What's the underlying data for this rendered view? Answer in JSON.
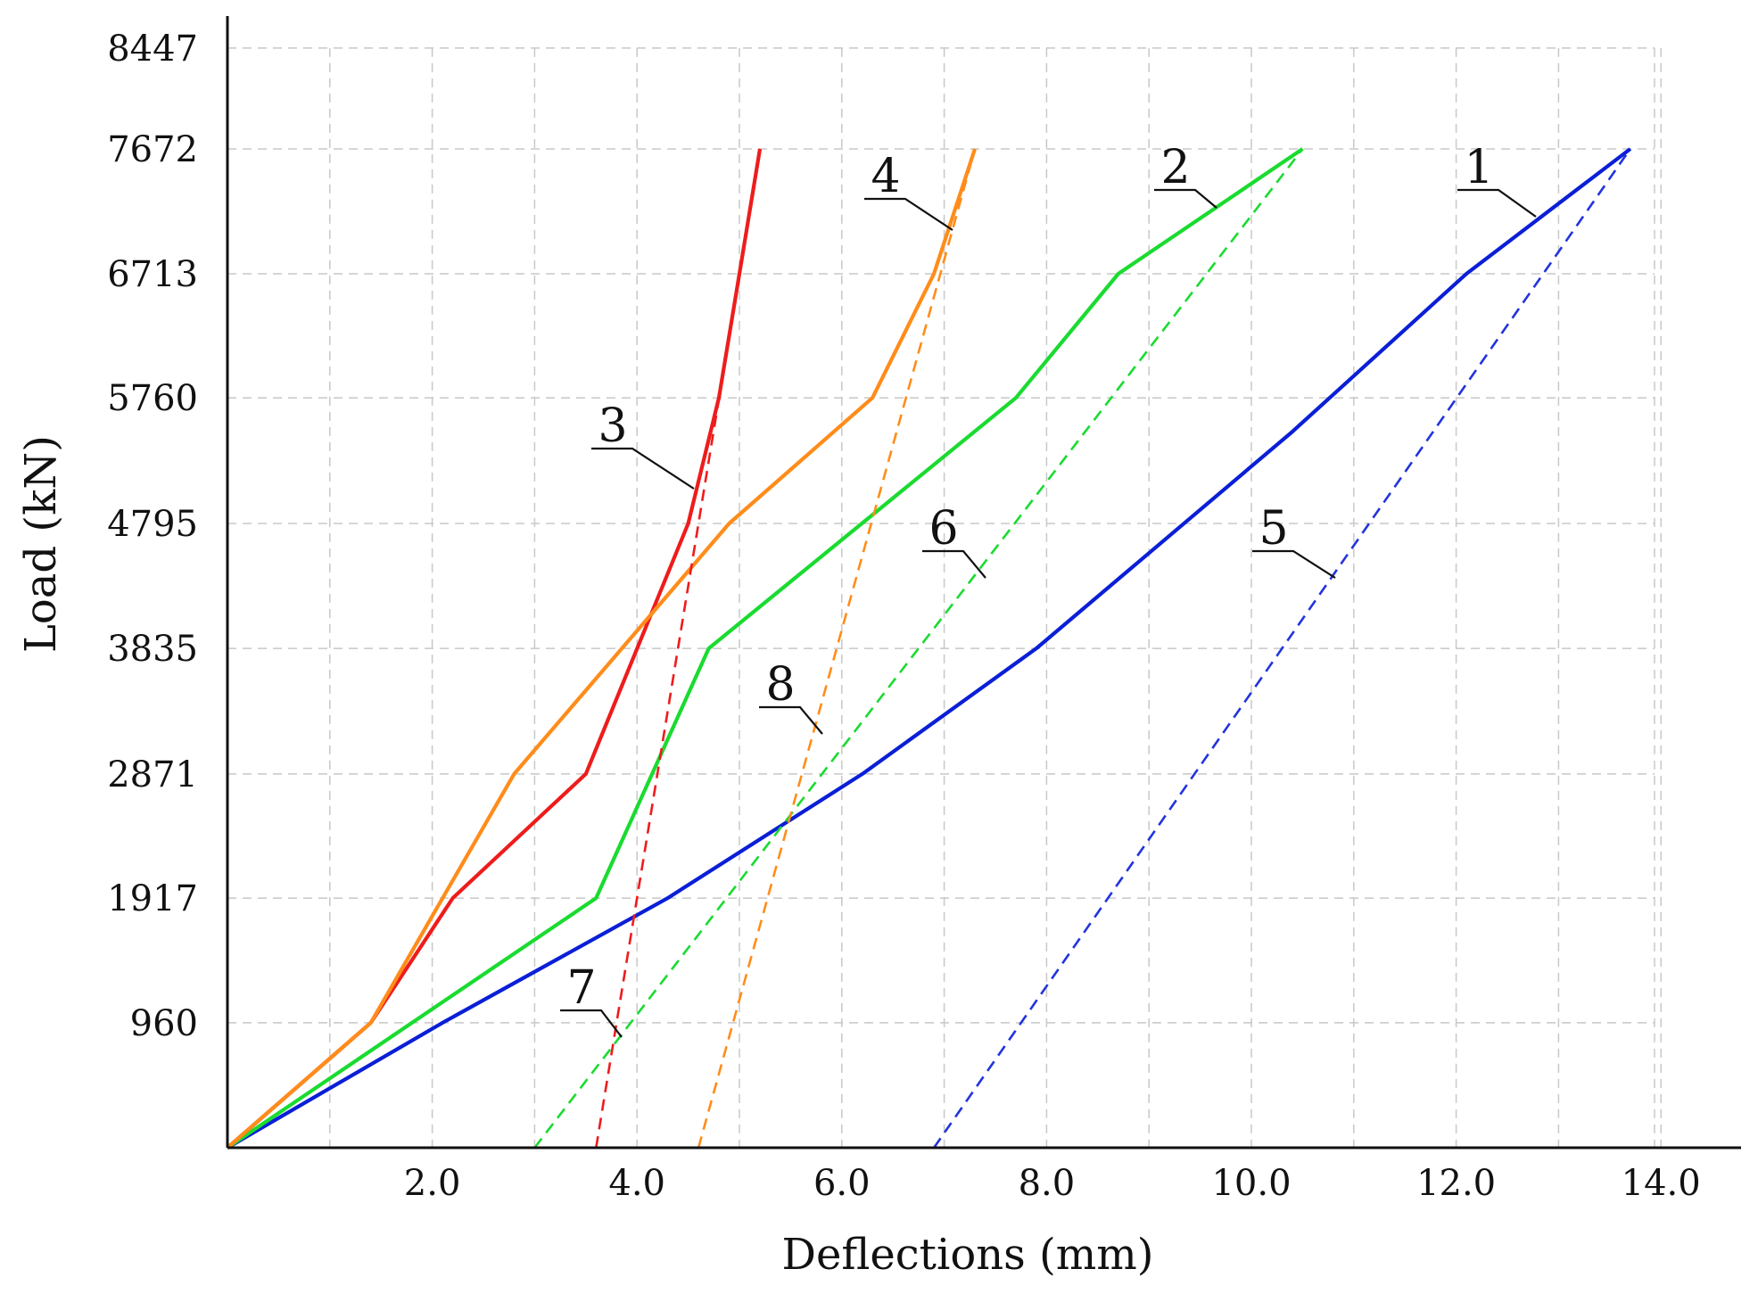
{
  "chart_data": {
    "type": "line",
    "title": "",
    "xlabel": "Deflections (mm)",
    "ylabel": "Load (kN)",
    "xlim": [
      0,
      14.5
    ],
    "ylim": [
      0,
      8447
    ],
    "grid": true,
    "x_ticks": [
      2.0,
      4.0,
      6.0,
      8.0,
      10.0,
      12.0,
      14.0
    ],
    "x_tick_labels": [
      "2.0",
      "4.0",
      "6.0",
      "8.0",
      "10.0",
      "12.0",
      "14.0"
    ],
    "x_minor_grid": [
      1.0,
      3.0,
      5.0,
      7.0,
      9.0,
      11.0,
      13.0
    ],
    "y_ticks": [
      960,
      1917,
      2871,
      3835,
      4795,
      5760,
      6713,
      7672,
      8447
    ],
    "y_tick_labels": [
      "960",
      "1917",
      "2871",
      "3835",
      "4795",
      "5760",
      "6713",
      "7672",
      "8447"
    ],
    "series": [
      {
        "name": "1",
        "color": "#0a1fd6",
        "style": "solid",
        "x": [
          0,
          2.1,
          4.3,
          6.2,
          7.9,
          10.4,
          12.1,
          13.7
        ],
        "y": [
          0,
          960,
          1917,
          2871,
          3835,
          5500,
          6713,
          7672
        ]
      },
      {
        "name": "2",
        "color": "#1adb30",
        "style": "solid",
        "x": [
          0,
          3.6,
          4.7,
          7.7,
          8.7,
          10.5
        ],
        "y": [
          0,
          1917,
          3835,
          5760,
          6713,
          7672
        ]
      },
      {
        "name": "3",
        "color": "#ee1c1c",
        "style": "solid",
        "x": [
          0,
          1.4,
          2.2,
          3.5,
          4.5,
          4.8,
          5.0,
          5.2
        ],
        "y": [
          0,
          960,
          1917,
          2871,
          4795,
          5760,
          6713,
          7672
        ]
      },
      {
        "name": "4",
        "color": "#ff8c1a",
        "style": "solid",
        "x": [
          0,
          1.4,
          2.8,
          4.9,
          6.3,
          6.9,
          7.3
        ],
        "y": [
          0,
          960,
          2871,
          4795,
          5760,
          6713,
          7672
        ]
      },
      {
        "name": "5",
        "color": "#2233dd",
        "style": "dashed",
        "x": [
          6.9,
          13.7
        ],
        "y": [
          0,
          7672
        ]
      },
      {
        "name": "6",
        "color": "#1adb30",
        "style": "dashed",
        "x": [
          3.0,
          10.5
        ],
        "y": [
          0,
          7672
        ]
      },
      {
        "name": "7",
        "color": "#ee1c1c",
        "style": "dashed",
        "x": [
          3.6,
          5.2
        ],
        "y": [
          0,
          7672
        ]
      },
      {
        "name": "8",
        "color": "#ff8c1a",
        "style": "dashed",
        "x": [
          4.6,
          7.3
        ],
        "y": [
          0,
          7672
        ]
      }
    ],
    "annotations": [
      {
        "text": "1",
        "series": "1"
      },
      {
        "text": "2",
        "series": "2"
      },
      {
        "text": "3",
        "series": "3"
      },
      {
        "text": "4",
        "series": "4"
      },
      {
        "text": "5",
        "series": "5"
      },
      {
        "text": "6",
        "series": "6"
      },
      {
        "text": "7",
        "series": "7"
      },
      {
        "text": "8",
        "series": "8"
      }
    ]
  }
}
